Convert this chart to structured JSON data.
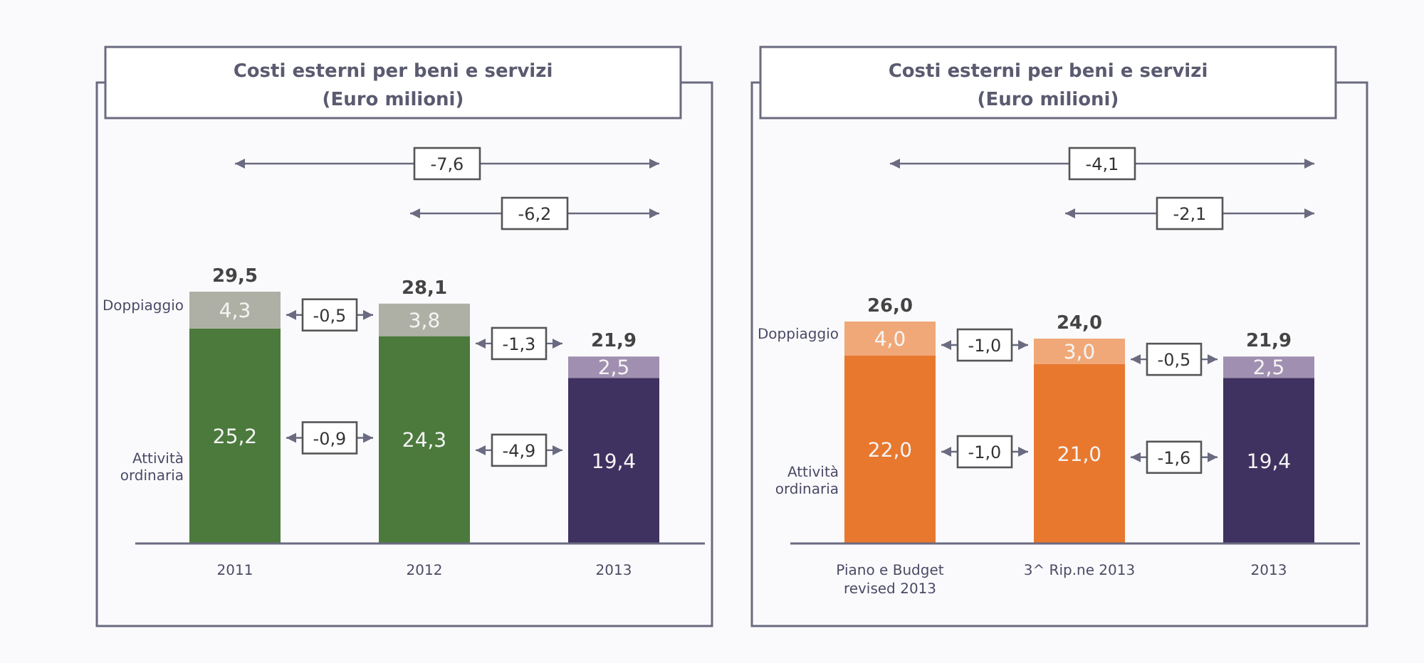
{
  "chart_data": [
    {
      "type": "bar",
      "stacked": true,
      "title": "Costi esterni per beni e servizi",
      "subtitle": "(Euro milioni)",
      "categories": [
        "2011",
        "2012",
        "2013"
      ],
      "series": [
        {
          "name": "Attività ordinaria",
          "colors": [
            "#4b7a3c",
            "#4b7a3c",
            "#3f3160"
          ],
          "values": [
            25.2,
            24.3,
            19.4
          ],
          "value_labels": [
            "25,2",
            "24,3",
            "19,4"
          ]
        },
        {
          "name": "Doppiaggio",
          "colors": [
            "#aeb0a5",
            "#aeb0a5",
            "#a08fb0"
          ],
          "values": [
            4.3,
            3.8,
            2.5
          ],
          "value_labels": [
            "4,3",
            "3,8",
            "2,5"
          ]
        }
      ],
      "totals": [
        "29,5",
        "28,1",
        "21,9"
      ],
      "annotations": [
        "-7,6",
        "-6,2",
        "-0,5",
        "-0,9",
        "-1,3",
        "-4,9"
      ]
    },
    {
      "type": "bar",
      "stacked": true,
      "title": "Costi esterni per beni e servizi",
      "subtitle": "(Euro milioni)",
      "categories": [
        "Piano e Budget revised 2013",
        "3^ Rip.ne 2013",
        "2013"
      ],
      "series": [
        {
          "name": "Attività ordinaria",
          "colors": [
            "#e8782e",
            "#e8782e",
            "#3f3160"
          ],
          "values": [
            22.0,
            21.0,
            19.4
          ],
          "value_labels": [
            "22,0",
            "21,0",
            "19,4"
          ]
        },
        {
          "name": "Doppiaggio",
          "colors": [
            "#f0a878",
            "#f0a878",
            "#a08fb0"
          ],
          "values": [
            4.0,
            3.0,
            2.5
          ],
          "value_labels": [
            "4,0",
            "3,0",
            "2,5"
          ]
        }
      ],
      "totals": [
        "26,0",
        "24,0",
        "21,9"
      ],
      "annotations": [
        "-4,1",
        "-2,1",
        "-1,0",
        "-1,0",
        "-0,5",
        "-1,6"
      ]
    }
  ]
}
